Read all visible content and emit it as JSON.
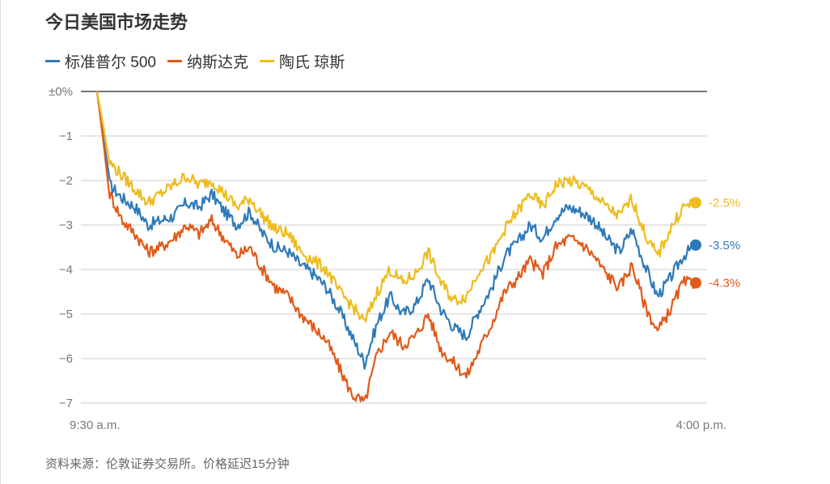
{
  "title": "今日美国市场走势",
  "source": "资料来源：伦敦证券交易所。价格延迟15分钟",
  "chart_data": {
    "type": "line",
    "ylim": [
      -7,
      0
    ],
    "y_ticks": [
      {
        "value": 0,
        "label": "±0%"
      },
      {
        "value": -1,
        "label": "−1"
      },
      {
        "value": -2,
        "label": "−2"
      },
      {
        "value": -3,
        "label": "−3"
      },
      {
        "value": -4,
        "label": "−4"
      },
      {
        "value": -5,
        "label": "−5"
      },
      {
        "value": -6,
        "label": "−6"
      },
      {
        "value": -7,
        "label": "−7"
      }
    ],
    "x_ticks": [
      {
        "position": "start",
        "label": "9:30 a.m."
      },
      {
        "position": "end",
        "label": "4:00 p.m."
      }
    ],
    "x": [
      "9:30",
      "9:31",
      "9:35",
      "9:40",
      "9:50",
      "10:00",
      "10:10",
      "10:15",
      "10:20",
      "10:30",
      "10:40",
      "10:50",
      "11:00",
      "11:10",
      "11:20",
      "11:30",
      "11:40",
      "11:50",
      "12:00",
      "12:10",
      "12:20",
      "12:30",
      "12:40",
      "12:45",
      "12:50",
      "13:00",
      "13:10",
      "13:20",
      "13:25",
      "13:30",
      "13:40",
      "13:50",
      "14:00",
      "14:10",
      "14:20",
      "14:30",
      "14:40",
      "14:50",
      "15:00",
      "15:10",
      "15:20",
      "15:30",
      "15:35",
      "15:40",
      "15:45",
      "15:50",
      "15:55",
      "16:00"
    ],
    "grid": true,
    "series": [
      {
        "name": "标准普尔 500",
        "color": "#2e7ab8",
        "end_label": "-3.5%",
        "values": [
          0.0,
          -2.1,
          -2.4,
          -2.6,
          -3.0,
          -2.9,
          -2.8,
          -2.5,
          -2.6,
          -2.3,
          -2.7,
          -3.0,
          -2.7,
          -3.2,
          -3.5,
          -3.6,
          -3.9,
          -4.1,
          -4.4,
          -4.9,
          -5.5,
          -6.1,
          -5.2,
          -4.6,
          -5.0,
          -4.8,
          -4.2,
          -4.9,
          -5.3,
          -5.5,
          -4.9,
          -4.4,
          -3.7,
          -3.4,
          -3.0,
          -3.3,
          -2.8,
          -2.6,
          -2.7,
          -2.9,
          -3.3,
          -3.6,
          -3.1,
          -3.9,
          -4.6,
          -4.2,
          -3.7,
          -3.45
        ]
      },
      {
        "name": "纳斯达克",
        "color": "#e05a1a",
        "end_label": "-4.3%",
        "values": [
          0.0,
          -2.3,
          -2.9,
          -3.2,
          -3.6,
          -3.5,
          -3.3,
          -3.0,
          -3.2,
          -2.9,
          -3.3,
          -3.7,
          -3.5,
          -4.0,
          -4.4,
          -4.6,
          -5.0,
          -5.3,
          -5.6,
          -6.2,
          -6.8,
          -7.0,
          -5.9,
          -5.4,
          -5.7,
          -5.5,
          -5.0,
          -5.8,
          -6.1,
          -6.4,
          -5.8,
          -5.2,
          -4.5,
          -4.2,
          -3.8,
          -4.1,
          -3.5,
          -3.3,
          -3.4,
          -3.7,
          -4.1,
          -4.4,
          -3.9,
          -4.8,
          -5.4,
          -4.9,
          -4.3,
          -4.3
        ]
      },
      {
        "name": "陶氏 琼斯",
        "color": "#eebc1e",
        "end_label": "-2.5%",
        "values": [
          0.0,
          -1.6,
          -1.9,
          -2.2,
          -2.5,
          -2.3,
          -2.1,
          -1.9,
          -2.1,
          -2.0,
          -2.3,
          -2.6,
          -2.4,
          -2.8,
          -3.1,
          -3.2,
          -3.6,
          -3.8,
          -4.0,
          -4.5,
          -4.8,
          -5.2,
          -4.5,
          -4.0,
          -4.3,
          -4.1,
          -3.6,
          -4.3,
          -4.7,
          -4.6,
          -4.0,
          -3.7,
          -3.1,
          -2.7,
          -2.3,
          -2.6,
          -2.1,
          -2.0,
          -2.1,
          -2.3,
          -2.6,
          -2.8,
          -2.4,
          -3.2,
          -3.7,
          -3.1,
          -2.6,
          -2.5
        ]
      }
    ]
  }
}
